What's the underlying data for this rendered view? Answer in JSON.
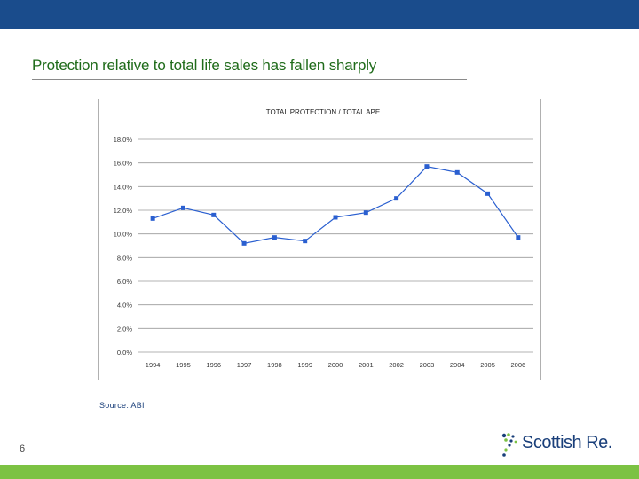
{
  "slide": {
    "title": "Protection relative to total life sales has fallen sharply",
    "source": "Source: ABI",
    "page_number": "6",
    "brand_name": "Scottish Re.",
    "colors": {
      "top_bar": "#1a4c8c",
      "bottom_bar": "#7cc243",
      "title": "#1f6b1a",
      "series": "#2a5fd0"
    }
  },
  "chart_data": {
    "type": "line",
    "title": "TOTAL PROTECTION / TOTAL APE",
    "categories": [
      "1994",
      "1995",
      "1996",
      "1997",
      "1998",
      "1999",
      "2000",
      "2001",
      "2002",
      "2003",
      "2004",
      "2005",
      "2006"
    ],
    "series": [
      {
        "values": [
          11.3,
          12.2,
          11.6,
          9.2,
          9.7,
          9.4,
          11.4,
          11.8,
          13.0,
          15.7,
          15.2,
          13.4,
          9.7
        ]
      }
    ],
    "y_ticks": [
      "0.0%",
      "2.0%",
      "4.0%",
      "6.0%",
      "8.0%",
      "10.0%",
      "12.0%",
      "14.0%",
      "16.0%",
      "18.0%"
    ],
    "ylim": [
      0,
      18
    ],
    "grid": true,
    "legend": false
  }
}
